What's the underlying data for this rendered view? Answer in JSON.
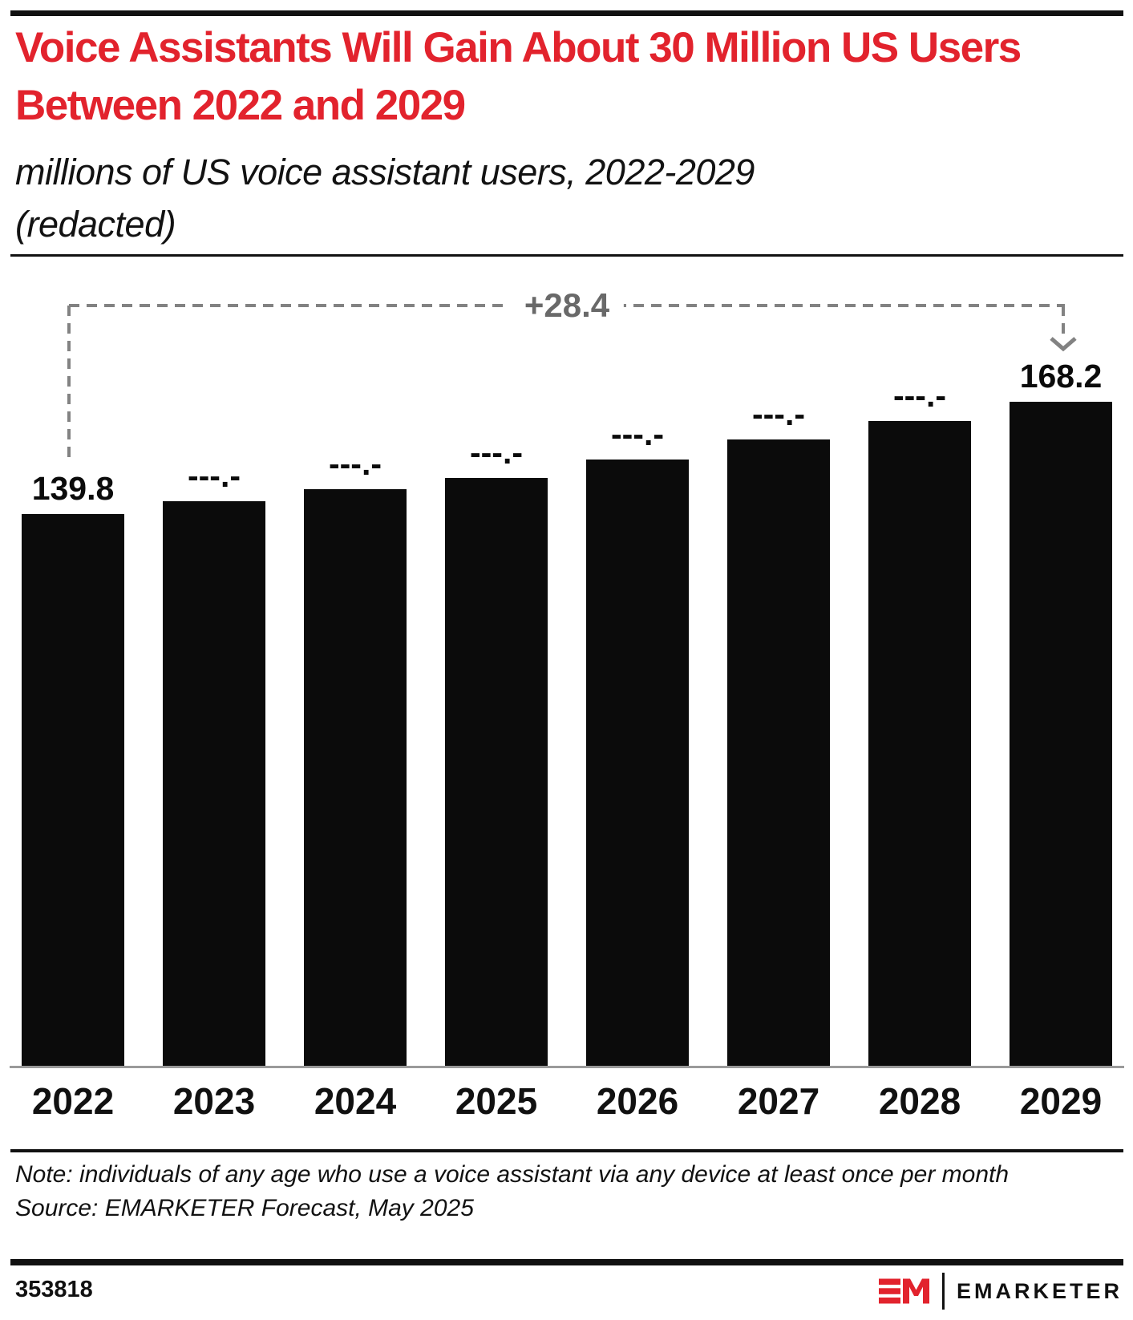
{
  "header": {
    "title": "Voice Assistants Will Gain About 30 Million US Users Between 2022 and 2029",
    "subtitle_line1": "millions of US voice assistant users, 2022-2029",
    "subtitle_line2": "(redacted)"
  },
  "chart_data": {
    "type": "bar",
    "title": "Voice Assistants Will Gain About 30 Million US Users Between 2022 and 2029",
    "subtitle": "millions of US voice assistant users, 2022-2029 (redacted)",
    "categories": [
      "2022",
      "2023",
      "2024",
      "2025",
      "2026",
      "2027",
      "2028",
      "2029"
    ],
    "labels": [
      "139.8",
      "---.-",
      "---.-",
      "---.-",
      "---.-",
      "---.-",
      "---.-",
      "168.2"
    ],
    "values_estimated": [
      139.8,
      143.1,
      146.2,
      148.9,
      153.6,
      158.7,
      163.4,
      168.2
    ],
    "redacted_years": [
      "2023",
      "2024",
      "2025",
      "2026",
      "2027",
      "2028"
    ],
    "ylim": [
      0,
      168.2
    ],
    "grid": false,
    "legend": "none",
    "bar_color": "#0b0b0b",
    "annotation": {
      "text": "+28.4",
      "from_category": "2022",
      "to_category": "2029",
      "color": "#696969"
    }
  },
  "footer": {
    "note": "Note: individuals of any age who use a voice assistant via any device at least once per month",
    "source": "Source: EMARKETER Forecast, May 2025",
    "chart_id": "353818",
    "brand": "EMARKETER"
  },
  "colors": {
    "title_red": "#e2232d",
    "bar_black": "#0b0b0b",
    "annotation_gray": "#828282",
    "axis_gray": "#9a9a9a"
  }
}
